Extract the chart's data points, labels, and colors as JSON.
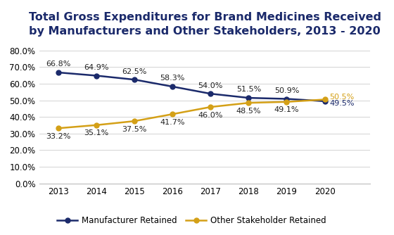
{
  "title_line1": "Total Gross Expenditures for Brand Medicines Received",
  "title_line2": "by Manufacturers and Other Stakeholders, 2013 - 2020",
  "years": [
    2013,
    2014,
    2015,
    2016,
    2017,
    2018,
    2019,
    2020
  ],
  "manufacturer_retained": [
    66.8,
    64.9,
    62.5,
    58.3,
    54.0,
    51.5,
    50.9,
    49.5
  ],
  "stakeholder_retained": [
    33.2,
    35.1,
    37.5,
    41.7,
    46.0,
    48.5,
    49.1,
    50.5
  ],
  "manufacturer_labels": [
    "66.8%",
    "64.9%",
    "62.5%",
    "58.3%",
    "54.0%",
    "51.5%",
    "50.9%",
    "49.5%"
  ],
  "stakeholder_labels": [
    "33.2%",
    "35.1%",
    "37.5%",
    "41.7%",
    "46.0%",
    "48.5%",
    "49.1%",
    "50.5%"
  ],
  "manufacturer_color": "#1b2a6b",
  "stakeholder_color": "#d4a017",
  "legend_manufacturer": "Manufacturer Retained",
  "legend_stakeholder": "Other Stakeholder Retained",
  "ylim_max": 85,
  "yticks": [
    0,
    10,
    20,
    30,
    40,
    50,
    60,
    70,
    80
  ],
  "background_color": "#ffffff",
  "title_fontsize": 11.5,
  "label_fontsize": 8,
  "legend_fontsize": 8.5,
  "tick_fontsize": 8.5,
  "title_color": "#1b2a6b"
}
